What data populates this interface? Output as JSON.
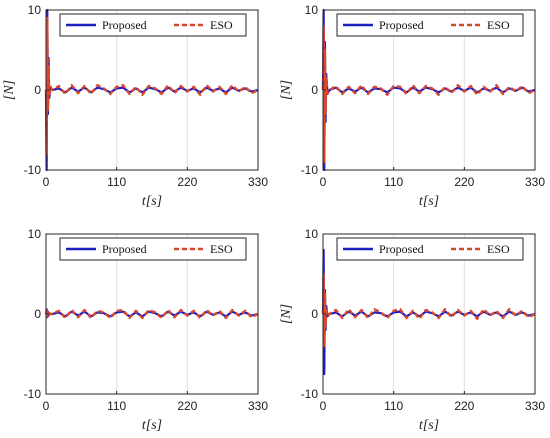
{
  "chart_data": [
    {
      "type": "line",
      "xlabel": "t[s]",
      "ylabel": "[N]",
      "xlim": [
        0,
        330
      ],
      "ylim": [
        -10,
        10
      ],
      "xticks": [
        "0",
        "110",
        "220",
        "330"
      ],
      "yticks": [
        "10",
        "0",
        "-10"
      ],
      "grid": "vertical",
      "legend_position": "top",
      "series": [
        {
          "name": "Proposed",
          "color": "#1f1fbf",
          "style": "solid",
          "x": [
            0,
            1,
            2,
            3,
            4,
            5,
            7,
            10,
            20,
            30,
            40,
            50,
            60,
            70,
            80,
            90,
            100,
            110,
            120,
            130,
            140,
            150,
            160,
            170,
            180,
            190,
            200,
            210,
            220,
            230,
            240,
            250,
            260,
            270,
            280,
            290,
            300,
            310,
            320,
            330
          ],
          "y": [
            0,
            -10,
            10,
            -3,
            4,
            -1,
            0.3,
            0,
            0.2,
            -0.3,
            0.3,
            -0.2,
            0.3,
            -0.3,
            0.3,
            0.1,
            -0.3,
            0.2,
            0.3,
            -0.3,
            0.2,
            -0.3,
            0.3,
            0.1,
            -0.3,
            0.3,
            -0.2,
            0.3,
            -0.1,
            0.2,
            -0.3,
            0.3,
            -0.1,
            0.2,
            -0.3,
            0.3,
            -0.1,
            0.2,
            -0.2,
            0
          ]
        },
        {
          "name": "ESO",
          "color": "#d9482b",
          "style": "dashed",
          "x": [
            0,
            1,
            2,
            3,
            4,
            5,
            7,
            10,
            20,
            30,
            40,
            50,
            60,
            70,
            80,
            90,
            100,
            110,
            120,
            130,
            140,
            150,
            160,
            170,
            180,
            190,
            200,
            210,
            220,
            230,
            240,
            250,
            260,
            270,
            280,
            290,
            300,
            310,
            320,
            330
          ],
          "y": [
            0,
            -8,
            9,
            -2.5,
            3,
            -0.8,
            0.4,
            0,
            0.5,
            -0.5,
            0.6,
            -0.4,
            0.5,
            -0.5,
            0.6,
            0.2,
            -0.5,
            0.4,
            0.6,
            -0.5,
            0.4,
            -0.6,
            0.5,
            0.2,
            -0.5,
            0.6,
            -0.4,
            0.5,
            -0.2,
            0.4,
            -0.6,
            0.6,
            -0.2,
            0.4,
            -0.5,
            0.6,
            -0.2,
            0.4,
            -0.4,
            0
          ]
        }
      ]
    },
    {
      "type": "line",
      "xlabel": "t[s]",
      "ylabel": "[N]",
      "xlim": [
        0,
        330
      ],
      "ylim": [
        -10,
        10
      ],
      "xticks": [
        "0",
        "110",
        "220",
        "330"
      ],
      "yticks": [
        "10",
        "0",
        "-10"
      ],
      "grid": "vertical",
      "legend_position": "top",
      "series": [
        {
          "name": "Proposed",
          "color": "#1f1fbf",
          "style": "solid",
          "x": [
            0,
            1,
            2,
            3,
            4,
            5,
            7,
            10,
            20,
            30,
            40,
            50,
            60,
            70,
            80,
            90,
            100,
            110,
            120,
            130,
            140,
            150,
            160,
            170,
            180,
            190,
            200,
            210,
            220,
            230,
            240,
            250,
            260,
            270,
            280,
            290,
            300,
            310,
            320,
            330
          ],
          "y": [
            0,
            10,
            -10,
            6,
            -4,
            2,
            -0.5,
            0,
            0.3,
            -0.3,
            0.2,
            -0.2,
            0.3,
            -0.3,
            0.2,
            0.1,
            -0.3,
            0.3,
            0.2,
            -0.3,
            0.3,
            -0.2,
            0.3,
            0.1,
            -0.3,
            0.2,
            -0.2,
            0.3,
            -0.1,
            0.3,
            -0.3,
            0.2,
            -0.1,
            0.3,
            -0.3,
            0.2,
            -0.1,
            0.3,
            -0.2,
            0
          ]
        },
        {
          "name": "ESO",
          "color": "#d9482b",
          "style": "dashed",
          "x": [
            0,
            1,
            2,
            3,
            4,
            5,
            7,
            10,
            20,
            30,
            40,
            50,
            60,
            70,
            80,
            90,
            100,
            110,
            120,
            130,
            140,
            150,
            160,
            170,
            180,
            190,
            200,
            210,
            220,
            230,
            240,
            250,
            260,
            270,
            280,
            290,
            300,
            310,
            320,
            330
          ],
          "y": [
            0,
            8,
            -9,
            5,
            -3,
            1.5,
            -0.4,
            0,
            0.5,
            -0.5,
            0.4,
            -0.4,
            0.6,
            -0.5,
            0.4,
            0.2,
            -0.6,
            0.5,
            0.4,
            -0.5,
            0.6,
            -0.4,
            0.5,
            0.2,
            -0.6,
            0.4,
            -0.4,
            0.6,
            -0.2,
            0.5,
            -0.6,
            0.4,
            -0.2,
            0.6,
            -0.5,
            0.4,
            -0.2,
            0.5,
            -0.4,
            0
          ]
        }
      ]
    },
    {
      "type": "line",
      "xlabel": "t[s]",
      "ylabel": "",
      "xlim": [
        0,
        330
      ],
      "ylim": [
        -10,
        10
      ],
      "xticks": [
        "0",
        "110",
        "220",
        "330"
      ],
      "yticks": [
        "10",
        "0",
        "-10"
      ],
      "grid": "vertical",
      "legend_position": "top",
      "series": [
        {
          "name": "Proposed",
          "color": "#1f1fbf",
          "style": "solid",
          "x": [
            0,
            1,
            2,
            3,
            4,
            5,
            7,
            10,
            20,
            30,
            40,
            50,
            60,
            70,
            80,
            90,
            100,
            110,
            120,
            130,
            140,
            150,
            160,
            170,
            180,
            190,
            200,
            210,
            220,
            230,
            240,
            250,
            260,
            270,
            280,
            290,
            300,
            310,
            320,
            330
          ],
          "y": [
            0,
            0.6,
            -0.4,
            0.3,
            -0.2,
            0.1,
            0,
            0,
            0.2,
            -0.3,
            0.3,
            -0.2,
            0.3,
            -0.3,
            0.2,
            0.1,
            -0.3,
            0.2,
            0.3,
            -0.3,
            0.2,
            -0.3,
            0.3,
            0.1,
            -0.3,
            0.3,
            -0.2,
            0.3,
            -0.1,
            0.2,
            -0.3,
            0.3,
            -0.1,
            0.2,
            -0.3,
            0.3,
            -0.1,
            0.2,
            -0.2,
            0
          ]
        },
        {
          "name": "ESO",
          "color": "#d9482b",
          "style": "dashed",
          "x": [
            0,
            1,
            2,
            3,
            4,
            5,
            7,
            10,
            20,
            30,
            40,
            50,
            60,
            70,
            80,
            90,
            100,
            110,
            120,
            130,
            140,
            150,
            160,
            170,
            180,
            190,
            200,
            210,
            220,
            230,
            240,
            250,
            260,
            270,
            280,
            290,
            300,
            310,
            320,
            330
          ],
          "y": [
            0,
            0.4,
            -0.3,
            0.2,
            -0.1,
            0.1,
            0,
            0,
            0.4,
            -0.5,
            0.5,
            -0.4,
            0.5,
            -0.5,
            0.4,
            0.2,
            -0.5,
            0.4,
            0.5,
            -0.5,
            0.4,
            -0.5,
            0.5,
            0.2,
            -0.5,
            0.5,
            -0.4,
            0.5,
            -0.2,
            0.4,
            -0.5,
            0.5,
            -0.2,
            0.4,
            -0.5,
            0.5,
            -0.2,
            0.4,
            -0.4,
            0
          ]
        }
      ]
    },
    {
      "type": "line",
      "xlabel": "t[s]",
      "ylabel": "[N]",
      "xlim": [
        0,
        330
      ],
      "ylim": [
        -10,
        10
      ],
      "xticks": [
        "0",
        "110",
        "220",
        "330"
      ],
      "yticks": [
        "10",
        "0",
        "-10"
      ],
      "grid": "vertical",
      "legend_position": "top",
      "series": [
        {
          "name": "Proposed",
          "color": "#1f1fbf",
          "style": "solid",
          "x": [
            0,
            1,
            2,
            3,
            4,
            5,
            7,
            10,
            20,
            30,
            40,
            50,
            60,
            70,
            80,
            90,
            100,
            110,
            120,
            130,
            140,
            150,
            160,
            170,
            180,
            190,
            200,
            210,
            220,
            230,
            240,
            250,
            260,
            270,
            280,
            290,
            300,
            310,
            320,
            330
          ],
          "y": [
            0,
            8,
            -7.5,
            3,
            -2,
            1,
            -0.3,
            0,
            0.2,
            -0.3,
            0.3,
            -0.2,
            0.3,
            -0.3,
            0.2,
            0.1,
            -0.3,
            0.2,
            0.3,
            -0.3,
            0.2,
            -0.3,
            0.3,
            0.1,
            -0.3,
            0.3,
            -0.2,
            0.3,
            -0.1,
            0.2,
            -0.3,
            0.3,
            -0.1,
            0.2,
            -0.3,
            0.3,
            -0.1,
            0.2,
            -0.2,
            0
          ]
        },
        {
          "name": "ESO",
          "color": "#d9482b",
          "style": "dashed",
          "x": [
            0,
            1,
            2,
            3,
            4,
            5,
            7,
            10,
            20,
            30,
            40,
            50,
            60,
            70,
            80,
            90,
            100,
            110,
            120,
            130,
            140,
            150,
            160,
            170,
            180,
            190,
            200,
            210,
            220,
            230,
            240,
            250,
            260,
            270,
            280,
            290,
            300,
            310,
            320,
            330
          ],
          "y": [
            0,
            5,
            -4,
            2.5,
            -1.5,
            0.8,
            -0.3,
            0,
            0.5,
            -0.5,
            0.6,
            -0.4,
            0.5,
            -0.5,
            0.6,
            0.2,
            -0.5,
            0.4,
            0.6,
            -0.5,
            0.4,
            -0.6,
            0.5,
            0.2,
            -0.5,
            0.6,
            -0.4,
            0.5,
            -0.2,
            0.4,
            -0.6,
            0.6,
            -0.2,
            0.4,
            -0.5,
            0.6,
            -0.2,
            0.4,
            -0.4,
            0
          ]
        }
      ]
    }
  ]
}
